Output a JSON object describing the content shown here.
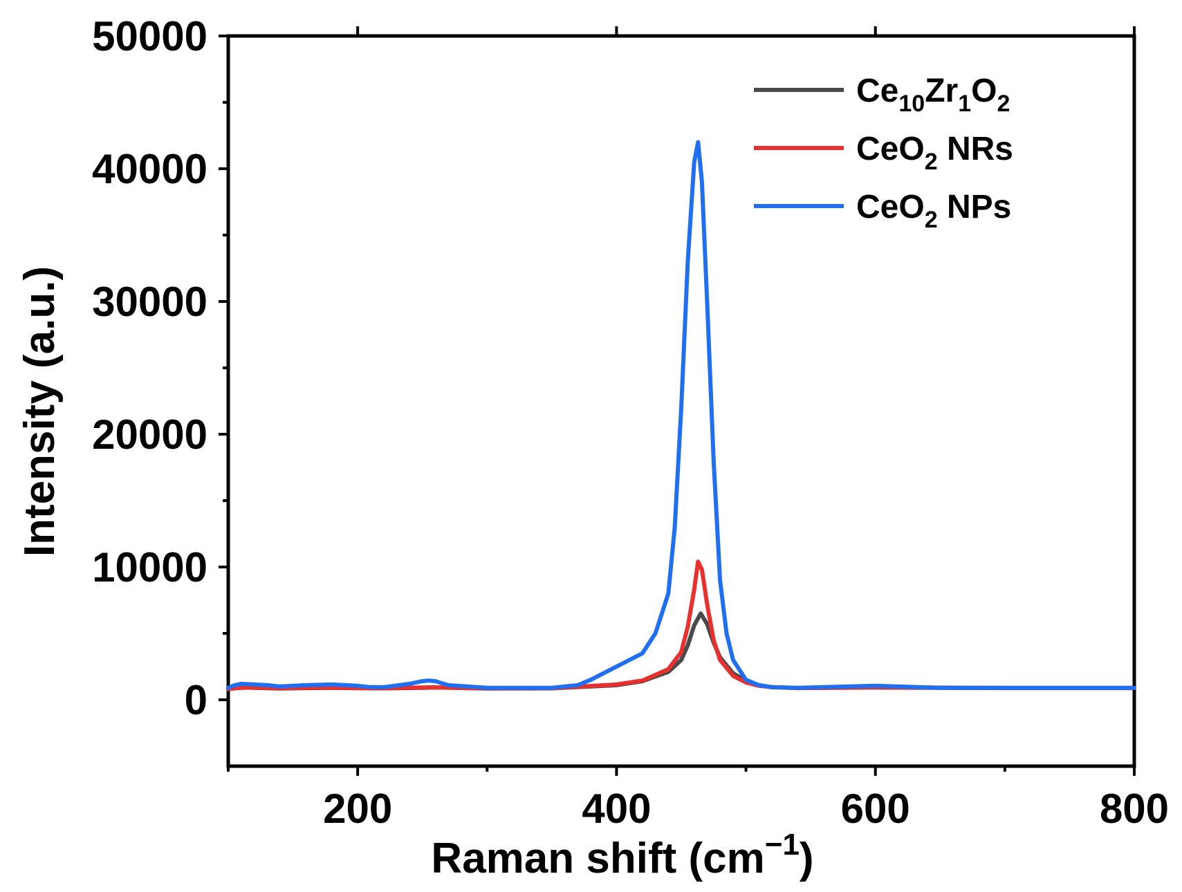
{
  "chart_data": {
    "type": "line",
    "title": "",
    "xlabel": "Raman shift (cm",
    "xlabel_sup": "−1",
    "xlabel_close": ")",
    "ylabel": "Intensity (a.u.)",
    "xlim": [
      100,
      800
    ],
    "ylim": [
      -5000,
      50000
    ],
    "x_ticks": [
      200,
      400,
      600,
      800
    ],
    "y_ticks": [
      0,
      10000,
      20000,
      30000,
      40000,
      50000
    ],
    "x_tick_labels": [
      "200",
      "400",
      "600",
      "800"
    ],
    "y_tick_labels": [
      "0",
      "10000",
      "20000",
      "30000",
      "40000",
      "50000"
    ],
    "legend_position": "top-right",
    "series": [
      {
        "name": "Ce10Zr1O2",
        "label_parts": [
          [
            "Ce",
            ""
          ],
          [
            "10",
            "sub"
          ],
          [
            "Zr",
            ""
          ],
          [
            "1",
            "sub"
          ],
          [
            "O",
            ""
          ],
          [
            "2",
            "sub"
          ]
        ],
        "color": "#4a4a4a",
        "x": [
          100,
          110,
          120,
          140,
          160,
          180,
          200,
          220,
          250,
          260,
          300,
          350,
          400,
          420,
          440,
          450,
          455,
          460,
          465,
          470,
          475,
          480,
          490,
          500,
          510,
          520,
          540,
          600,
          700,
          800
        ],
        "y": [
          800,
          950,
          900,
          850,
          880,
          900,
          870,
          860,
          900,
          920,
          850,
          860,
          1100,
          1400,
          2100,
          3000,
          4100,
          5600,
          6500,
          5700,
          4300,
          3200,
          2000,
          1400,
          1100,
          950,
          880,
          920,
          880,
          880
        ]
      },
      {
        "name": "CeO2 NRs",
        "label_parts": [
          [
            "CeO",
            ""
          ],
          [
            "2",
            "sub"
          ],
          [
            " NRs",
            ""
          ]
        ],
        "color": "#e8302f",
        "x": [
          100,
          110,
          120,
          140,
          160,
          180,
          200,
          220,
          250,
          260,
          300,
          350,
          400,
          420,
          440,
          450,
          455,
          460,
          463,
          466,
          470,
          475,
          480,
          490,
          500,
          510,
          520,
          540,
          600,
          700,
          800
        ],
        "y": [
          820,
          900,
          920,
          870,
          900,
          910,
          880,
          870,
          920,
          940,
          860,
          870,
          1150,
          1450,
          2300,
          3600,
          5500,
          8300,
          10400,
          9800,
          7200,
          4500,
          3000,
          1800,
          1300,
          1050,
          950,
          880,
          950,
          890,
          890
        ]
      },
      {
        "name": "CeO2 NPs",
        "label_parts": [
          [
            "CeO",
            ""
          ],
          [
            "2",
            "sub"
          ],
          [
            " NPs",
            ""
          ]
        ],
        "color": "#1f6ff0",
        "x": [
          100,
          105,
          110,
          120,
          130,
          140,
          160,
          180,
          200,
          210,
          220,
          240,
          250,
          255,
          260,
          270,
          300,
          350,
          370,
          380,
          400,
          420,
          430,
          440,
          445,
          450,
          455,
          460,
          463,
          466,
          470,
          475,
          480,
          485,
          490,
          500,
          510,
          520,
          540,
          600,
          650,
          700,
          800
        ],
        "y": [
          900,
          1100,
          1200,
          1150,
          1100,
          1000,
          1100,
          1150,
          1050,
          950,
          950,
          1200,
          1400,
          1450,
          1400,
          1100,
          900,
          900,
          1100,
          1500,
          2500,
          3500,
          5000,
          8000,
          13000,
          22000,
          33000,
          40500,
          42000,
          39000,
          30000,
          18000,
          9000,
          5000,
          3000,
          1500,
          1100,
          950,
          900,
          1050,
          900,
          900,
          900
        ]
      }
    ]
  }
}
